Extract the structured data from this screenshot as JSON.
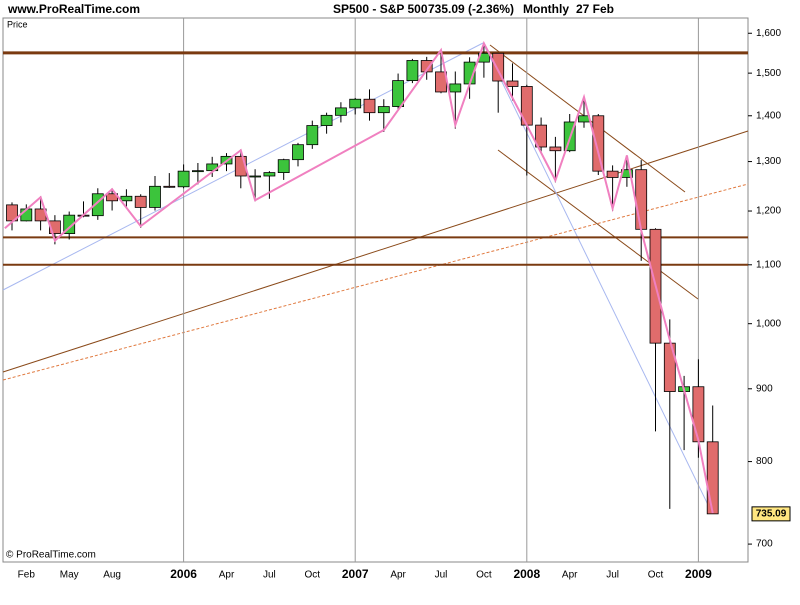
{
  "site": "www.ProRealTime.com",
  "instrument": "SP500 - S&P 500",
  "quote": "735.09 (-2.36%)",
  "period": "Monthly",
  "date": "27 Feb",
  "watermark": "© ProRealTime.com",
  "chart_data": {
    "type": "candlestick",
    "title": "Price",
    "categories": [
      null,
      "Feb",
      null,
      null,
      "May",
      null,
      null,
      "Aug",
      null,
      null,
      null,
      null,
      "2006",
      null,
      null,
      "Apr",
      null,
      null,
      "Jul",
      null,
      null,
      "Oct",
      null,
      null,
      "2007",
      null,
      null,
      "Apr",
      null,
      null,
      "Jul",
      null,
      null,
      "Oct",
      null,
      null,
      "2008",
      null,
      null,
      "Apr",
      null,
      null,
      "Jul",
      null,
      null,
      "Oct",
      null,
      null,
      "2009",
      null
    ],
    "open": [
      1212,
      1181,
      1204,
      1181,
      1157,
      1192,
      1191,
      1234,
      1220,
      1229,
      1207,
      1249,
      1248,
      1280,
      1281,
      1295,
      1311,
      1270,
      1270,
      1277,
      1304,
      1336,
      1378,
      1401,
      1418,
      1438,
      1407,
      1421,
      1482,
      1531,
      1503,
      1455,
      1474,
      1527,
      1549,
      1481,
      1468,
      1379,
      1331,
      1323,
      1386,
      1400,
      1280,
      1267,
      1283,
      1165,
      969,
      896,
      903,
      826
    ],
    "high": [
      1217,
      1213,
      1229,
      1192,
      1199,
      1219,
      1245,
      1245,
      1243,
      1233,
      1270,
      1276,
      1294,
      1297,
      1310,
      1318,
      1326,
      1284,
      1280,
      1306,
      1340,
      1389,
      1407,
      1431,
      1441,
      1461,
      1438,
      1499,
      1535,
      1540,
      1556,
      1504,
      1539,
      1576,
      1545,
      1524,
      1472,
      1396,
      1353,
      1404,
      1440,
      1404,
      1292,
      1313,
      1303,
      1167,
      1007,
      919,
      944,
      876
    ],
    "low": [
      1163,
      1180,
      1163,
      1137,
      1146,
      1188,
      1183,
      1201,
      1206,
      1168,
      1201,
      1246,
      1245,
      1253,
      1268,
      1280,
      1245,
      1219,
      1224,
      1262,
      1290,
      1327,
      1360,
      1385,
      1403,
      1389,
      1364,
      1416,
      1476,
      1484,
      1452,
      1371,
      1439,
      1489,
      1407,
      1435,
      1271,
      1317,
      1257,
      1320,
      1373,
      1272,
      1200,
      1248,
      1107,
      840,
      741,
      815,
      805,
      735
    ],
    "close": [
      1181,
      1204,
      1181,
      1157,
      1192,
      1191,
      1234,
      1220,
      1229,
      1207,
      1249,
      1248,
      1280,
      1281,
      1295,
      1311,
      1270,
      1270,
      1277,
      1304,
      1336,
      1378,
      1401,
      1418,
      1438,
      1407,
      1421,
      1482,
      1531,
      1503,
      1455,
      1474,
      1527,
      1549,
      1481,
      1468,
      1379,
      1331,
      1323,
      1386,
      1400,
      1280,
      1267,
      1283,
      1165,
      969,
      896,
      903,
      826,
      735.09
    ],
    "up_color": "#3cc43c",
    "down_color": "#e06c6c",
    "zigzag": {
      "x": [
        -0.5,
        2,
        3,
        7,
        9,
        16,
        17,
        26,
        30,
        31,
        33,
        36,
        38,
        40,
        42,
        43,
        44,
        46,
        48,
        49
      ],
      "values": [
        1167,
        1227,
        1144,
        1243,
        1171,
        1324,
        1221,
        1368,
        1557,
        1379,
        1574,
        1379,
        1261,
        1443,
        1205,
        1313,
        1163,
        974,
        828,
        736
      ],
      "color": "#f080c0"
    },
    "levels": [
      1550,
      1150,
      1100
    ],
    "level_color": "#7a3a10",
    "ylim": [
      680,
      1640
    ],
    "log_scale": true,
    "yticks": [
      {
        "value": 1600,
        "label": "1,600"
      },
      {
        "value": 1500,
        "label": "1,500"
      },
      {
        "value": 1400,
        "label": "1,400"
      },
      {
        "value": 1300,
        "label": "1,300"
      },
      {
        "value": 1200,
        "label": "1,200"
      },
      {
        "value": 1100,
        "label": "1,100"
      },
      {
        "value": 1000,
        "label": "1,000"
      },
      900,
      800,
      700
    ],
    "year_grid": true
  }
}
